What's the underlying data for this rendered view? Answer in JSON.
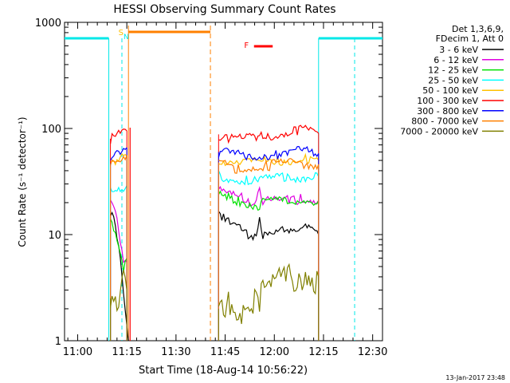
{
  "chart_data": {
    "type": "line",
    "title": "HESSI Observing Summary Count Rates",
    "xlabel": "Start Time (18-Aug-14 10:56:22)",
    "ylabel": "Count Rate (s⁻¹ detector⁻¹)",
    "yscale": "log",
    "ylim": [
      1,
      1000
    ],
    "xlim": [
      "10:56",
      "12:33"
    ],
    "x_ticks": [
      "11:00",
      "11:15",
      "11:30",
      "11:45",
      "12:00",
      "12:15",
      "12:30"
    ],
    "y_ticks": [
      "1",
      "10",
      "100",
      "1000"
    ],
    "legend_header": [
      "Det 1,3,6,9,",
      "FDecim 1, Att 0"
    ],
    "footer_date": "13-Jan-2017 23:48",
    "flags": {
      "s_label": "S",
      "n_label": "N",
      "f_label": "F"
    },
    "series": [
      {
        "name": "3 - 6 keV",
        "color": "#000000",
        "segments": [
          [
            [
              10.0,
              15.0
            ],
            [
              11.0,
              14.0
            ],
            [
              12.0,
              9.0
            ],
            [
              13.0,
              6.0
            ],
            [
              14.0,
              3.0
            ],
            [
              15.0,
              1.5
            ],
            [
              15.5,
              1.0
            ]
          ],
          [
            [
              43.0,
              17.0
            ],
            [
              45.0,
              14.0
            ],
            [
              47.0,
              12.0
            ],
            [
              49.0,
              11.5
            ],
            [
              51.0,
              10.5
            ],
            [
              53.0,
              9.8
            ],
            [
              54.5,
              10.5
            ],
            [
              55.5,
              15.0
            ],
            [
              56.5,
              10.0
            ],
            [
              58.0,
              9.5
            ],
            [
              60.0,
              9.8
            ],
            [
              62.0,
              10.5
            ],
            [
              64.0,
              11.2
            ],
            [
              66.0,
              11.5
            ],
            [
              68.0,
              11.8
            ],
            [
              70.0,
              11.2
            ],
            [
              72.0,
              10.5
            ],
            [
              73.5,
              10.0
            ]
          ]
        ]
      },
      {
        "name": "6 - 12 keV",
        "color": "#e000e0",
        "segments": [
          [
            [
              10.0,
              20.0
            ],
            [
              11.0,
              18.0
            ],
            [
              12.0,
              14.0
            ],
            [
              13.0,
              9.0
            ],
            [
              14.0,
              6.0
            ],
            [
              15.0,
              5.5
            ]
          ],
          [
            [
              43.0,
              26.0
            ],
            [
              46.0,
              24.0
            ],
            [
              49.0,
              22.5
            ],
            [
              52.0,
              21.0
            ],
            [
              54.0,
              21.0
            ],
            [
              55.5,
              28.0
            ],
            [
              56.5,
              21.0
            ],
            [
              59.0,
              20.5
            ],
            [
              62.0,
              21.0
            ],
            [
              65.0,
              21.5
            ],
            [
              68.0,
              22.0
            ],
            [
              71.0,
              21.5
            ],
            [
              73.5,
              21.0
            ]
          ]
        ]
      },
      {
        "name": "12 - 25 keV",
        "color": "#00e000",
        "segments": [
          [
            [
              10.0,
              14.0
            ],
            [
              11.0,
              12.0
            ],
            [
              12.0,
              10.0
            ],
            [
              13.0,
              7.0
            ],
            [
              14.0,
              5.0
            ],
            [
              15.0,
              6.0
            ]
          ],
          [
            [
              43.0,
              23.0
            ],
            [
              46.0,
              22.0
            ],
            [
              49.0,
              21.0
            ],
            [
              52.0,
              20.0
            ],
            [
              54.0,
              19.5
            ],
            [
              55.5,
              19.0
            ],
            [
              57.0,
              20.0
            ],
            [
              60.0,
              20.5
            ],
            [
              63.0,
              21.0
            ],
            [
              66.0,
              21.5
            ],
            [
              69.0,
              21.5
            ],
            [
              72.0,
              21.0
            ],
            [
              73.5,
              21.0
            ]
          ]
        ]
      },
      {
        "name": "25 - 50 keV",
        "color": "#00ffff",
        "segments": [
          [
            [
              10.0,
              28.0
            ],
            [
              12.0,
              29.0
            ],
            [
              14.0,
              28.0
            ],
            [
              15.0,
              29.0
            ]
          ],
          [
            [
              43.0,
              36.0
            ],
            [
              46.0,
              34.0
            ],
            [
              49.0,
              33.0
            ],
            [
              52.0,
              32.0
            ],
            [
              55.0,
              32.0
            ],
            [
              58.0,
              33.0
            ],
            [
              61.0,
              34.0
            ],
            [
              64.0,
              35.0
            ],
            [
              67.0,
              35.5
            ],
            [
              70.0,
              35.0
            ],
            [
              73.5,
              35.0
            ]
          ]
        ]
      },
      {
        "name": "50 - 100 keV",
        "color": "#ffc000",
        "segments": [
          [
            [
              10.0,
              50.0
            ],
            [
              12.0,
              52.0
            ],
            [
              14.0,
              54.0
            ],
            [
              15.0,
              55.0
            ]
          ],
          [
            [
              43.0,
              52.0
            ],
            [
              46.0,
              50.0
            ],
            [
              49.0,
              48.0
            ],
            [
              52.0,
              47.0
            ],
            [
              55.0,
              48.0
            ],
            [
              58.0,
              49.0
            ],
            [
              61.0,
              50.0
            ],
            [
              64.0,
              51.0
            ],
            [
              67.0,
              52.0
            ],
            [
              70.0,
              51.0
            ],
            [
              73.5,
              50.0
            ]
          ]
        ]
      },
      {
        "name": "100 - 300 keV",
        "color": "#ff0000",
        "segments": [
          [
            [
              10.0,
              80.0
            ],
            [
              12.0,
              85.0
            ],
            [
              14.0,
              90.0
            ],
            [
              15.0,
              95.0
            ]
          ],
          [
            [
              43.0,
              88.0
            ],
            [
              46.0,
              82.0
            ],
            [
              49.0,
              80.0
            ],
            [
              52.0,
              80.0
            ],
            [
              55.0,
              83.0
            ],
            [
              58.0,
              85.0
            ],
            [
              61.0,
              88.0
            ],
            [
              64.0,
              92.0
            ],
            [
              67.0,
              96.0
            ],
            [
              70.0,
              96.0
            ],
            [
              73.5,
              90.0
            ]
          ]
        ]
      },
      {
        "name": "300 - 800 keV",
        "color": "#0000ff",
        "segments": [
          [
            [
              10.0,
              47.0
            ],
            [
              11.0,
              52.0
            ],
            [
              12.0,
              58.0
            ],
            [
              13.0,
              62.0
            ],
            [
              14.0,
              65.0
            ],
            [
              15.0,
              66.0
            ]
          ],
          [
            [
              43.0,
              60.0
            ],
            [
              46.0,
              58.0
            ],
            [
              49.0,
              56.0
            ],
            [
              52.0,
              55.0
            ],
            [
              55.0,
              56.0
            ],
            [
              58.0,
              57.0
            ],
            [
              61.0,
              58.0
            ],
            [
              64.0,
              60.0
            ],
            [
              67.0,
              61.0
            ],
            [
              70.0,
              60.0
            ],
            [
              73.5,
              58.0
            ]
          ]
        ]
      },
      {
        "name": "800 - 7000 keV",
        "color": "#ff8000",
        "segments": [
          [
            [
              10.0,
              45.0
            ],
            [
              11.0,
              48.0
            ],
            [
              12.0,
              52.0
            ],
            [
              13.0,
              54.0
            ],
            [
              14.0,
              56.0
            ],
            [
              15.0,
              56.0
            ]
          ],
          [
            [
              43.0,
              48.0
            ],
            [
              46.0,
              44.0
            ],
            [
              49.0,
              42.0
            ],
            [
              52.0,
              43.0
            ],
            [
              55.0,
              44.0
            ],
            [
              58.0,
              45.0
            ],
            [
              61.0,
              46.0
            ],
            [
              64.0,
              47.0
            ],
            [
              67.0,
              48.0
            ],
            [
              70.0,
              47.0
            ],
            [
              73.5,
              46.0
            ]
          ]
        ]
      },
      {
        "name": "7000 - 20000 keV",
        "color": "#808000",
        "segments": [
          [
            [
              10.0,
              2.5
            ],
            [
              11.0,
              2.8
            ],
            [
              12.0,
              2.5
            ],
            [
              13.0,
              3.0
            ],
            [
              14.0,
              3.5
            ],
            [
              15.0,
              3.0
            ]
          ],
          [
            [
              43.0,
              2.0
            ],
            [
              46.0,
              2.5
            ],
            [
              49.0,
              2.0
            ],
            [
              52.0,
              2.5
            ],
            [
              55.0,
              2.8
            ],
            [
              58.0,
              3.0
            ],
            [
              61.0,
              3.5
            ],
            [
              64.0,
              4.0
            ],
            [
              67.0,
              4.5
            ],
            [
              70.0,
              4.5
            ],
            [
              73.5,
              4.0
            ]
          ]
        ]
      }
    ]
  }
}
